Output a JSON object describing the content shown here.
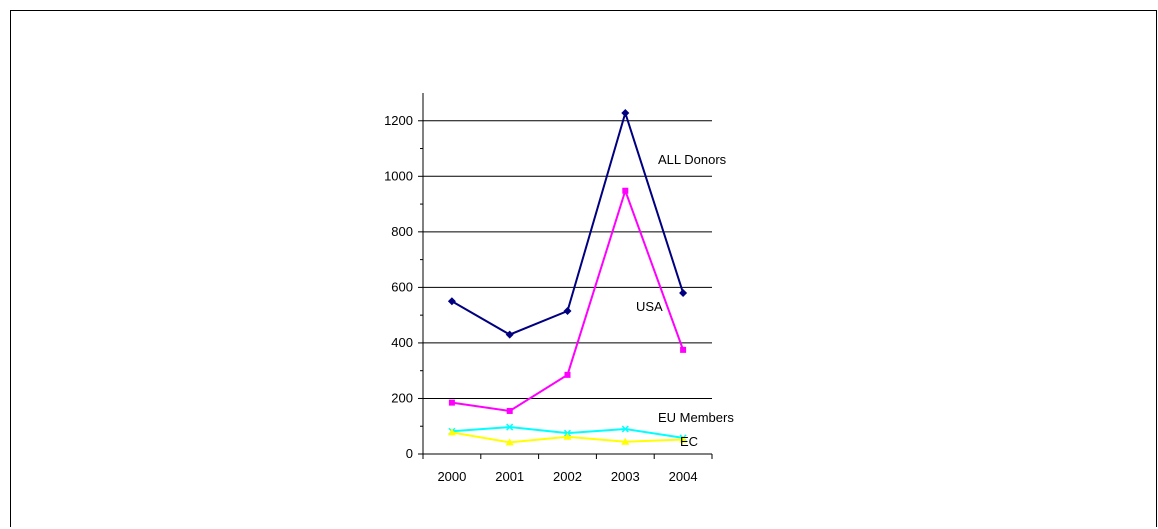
{
  "chart_data": {
    "type": "line",
    "title": "",
    "xlabel": "",
    "ylabel": "",
    "categories": [
      "2000",
      "2001",
      "2002",
      "2003",
      "2004"
    ],
    "ylim": [
      0,
      1300
    ],
    "yticks": [
      0,
      200,
      400,
      600,
      800,
      1000,
      1200
    ],
    "grid": true,
    "legend": "inline labels at right of each line",
    "series": [
      {
        "name": "ALL Donors",
        "values": [
          550,
          430,
          515,
          1228,
          580
        ],
        "color": "#000080",
        "marker": "diamond"
      },
      {
        "name": "USA",
        "values": [
          185,
          155,
          285,
          948,
          375
        ],
        "color": "#ff00ff",
        "marker": "square"
      },
      {
        "name": "EU Members",
        "values": [
          82,
          97,
          75,
          90,
          58
        ],
        "color": "#00ffff",
        "marker": "x"
      },
      {
        "name": "EC",
        "values": [
          78,
          42,
          62,
          44,
          52
        ],
        "color": "#ffff00",
        "marker": "triangle"
      }
    ]
  }
}
